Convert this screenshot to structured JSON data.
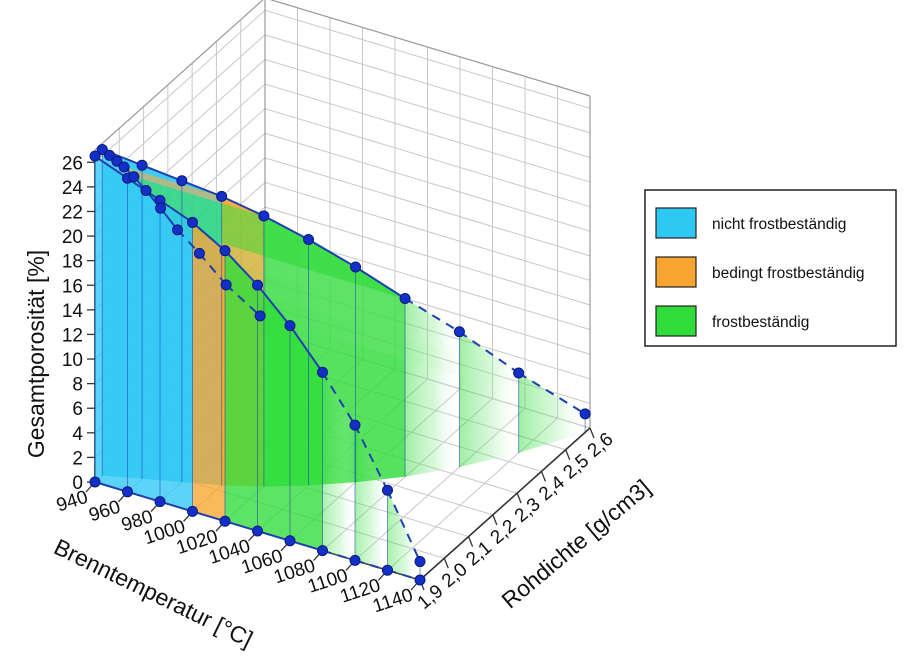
{
  "chart_data": {
    "type": "3d-surface",
    "x_axis": {
      "label": "Brenntemperatur [°C]",
      "ticks": [
        "940",
        "960",
        "980",
        "1000",
        "1020",
        "1040",
        "1060",
        "1080",
        "1100",
        "1120",
        "1140"
      ]
    },
    "y_axis": {
      "label": "Rohdichte [g/cm3]",
      "ticks": [
        "1,9",
        "2,0",
        "2,1",
        "2,2",
        "2,3",
        "2,4",
        "2,5",
        "2,6"
      ]
    },
    "z_axis": {
      "label": "Gesamtporosität [%]",
      "ticks": [
        "0",
        "2",
        "4",
        "6",
        "8",
        "10",
        "12",
        "14",
        "16",
        "18",
        "20",
        "22",
        "24",
        "26"
      ]
    },
    "series": [
      {
        "brenntemperatur": 940,
        "rohdichte": 1.93,
        "gesamtporositaet": 26.5,
        "kategorie": "nicht frostbeständig"
      },
      {
        "brenntemperatur": 960,
        "rohdichte": 1.96,
        "gesamtporositaet": 25.5,
        "kategorie": "nicht frostbeständig"
      },
      {
        "brenntemperatur": 980,
        "rohdichte": 1.99,
        "gesamtporositaet": 24.5,
        "kategorie": "nicht frostbeständig"
      },
      {
        "brenntemperatur": 1000,
        "rohdichte": 2.02,
        "gesamtporositaet": 23.5,
        "kategorie": "nicht frostbeständig"
      },
      {
        "brenntemperatur": 1020,
        "rohdichte": 2.06,
        "gesamtporositaet": 22.0,
        "kategorie": "bedingt frostbeständig"
      },
      {
        "brenntemperatur": 1040,
        "rohdichte": 2.11,
        "gesamtporositaet": 20.0,
        "kategorie": "frostbeständig"
      },
      {
        "brenntemperatur": 1060,
        "rohdichte": 2.17,
        "gesamtporositaet": 17.5,
        "kategorie": "frostbeständig"
      },
      {
        "brenntemperatur": 1080,
        "rohdichte": 2.24,
        "gesamtporositaet": 14.5,
        "kategorie": "frostbeständig"
      },
      {
        "brenntemperatur": 1100,
        "rohdichte": 2.33,
        "gesamtporositaet": 11.0,
        "kategorie": "frostbeständig"
      },
      {
        "brenntemperatur": 1120,
        "rohdichte": 2.44,
        "gesamtporositaet": 6.5,
        "kategorie": "frostbeständig"
      },
      {
        "brenntemperatur": 1140,
        "rohdichte": 2.58,
        "gesamtporositaet": 1.5,
        "kategorie": "frostbeständig"
      }
    ],
    "legend": {
      "position": "right",
      "entries": [
        {
          "label": "nicht frostbeständig",
          "color": "#2ec8f5"
        },
        {
          "label": "bedingt frostbeständig",
          "color": "#f7a530"
        },
        {
          "label": "frostbeständig",
          "color": "#2fdc3a"
        }
      ]
    },
    "colors": {
      "line": "#1e3fb0",
      "point": "#1230c8",
      "grid": "#c8c8c8",
      "axis": "#333333"
    },
    "grid": true
  }
}
